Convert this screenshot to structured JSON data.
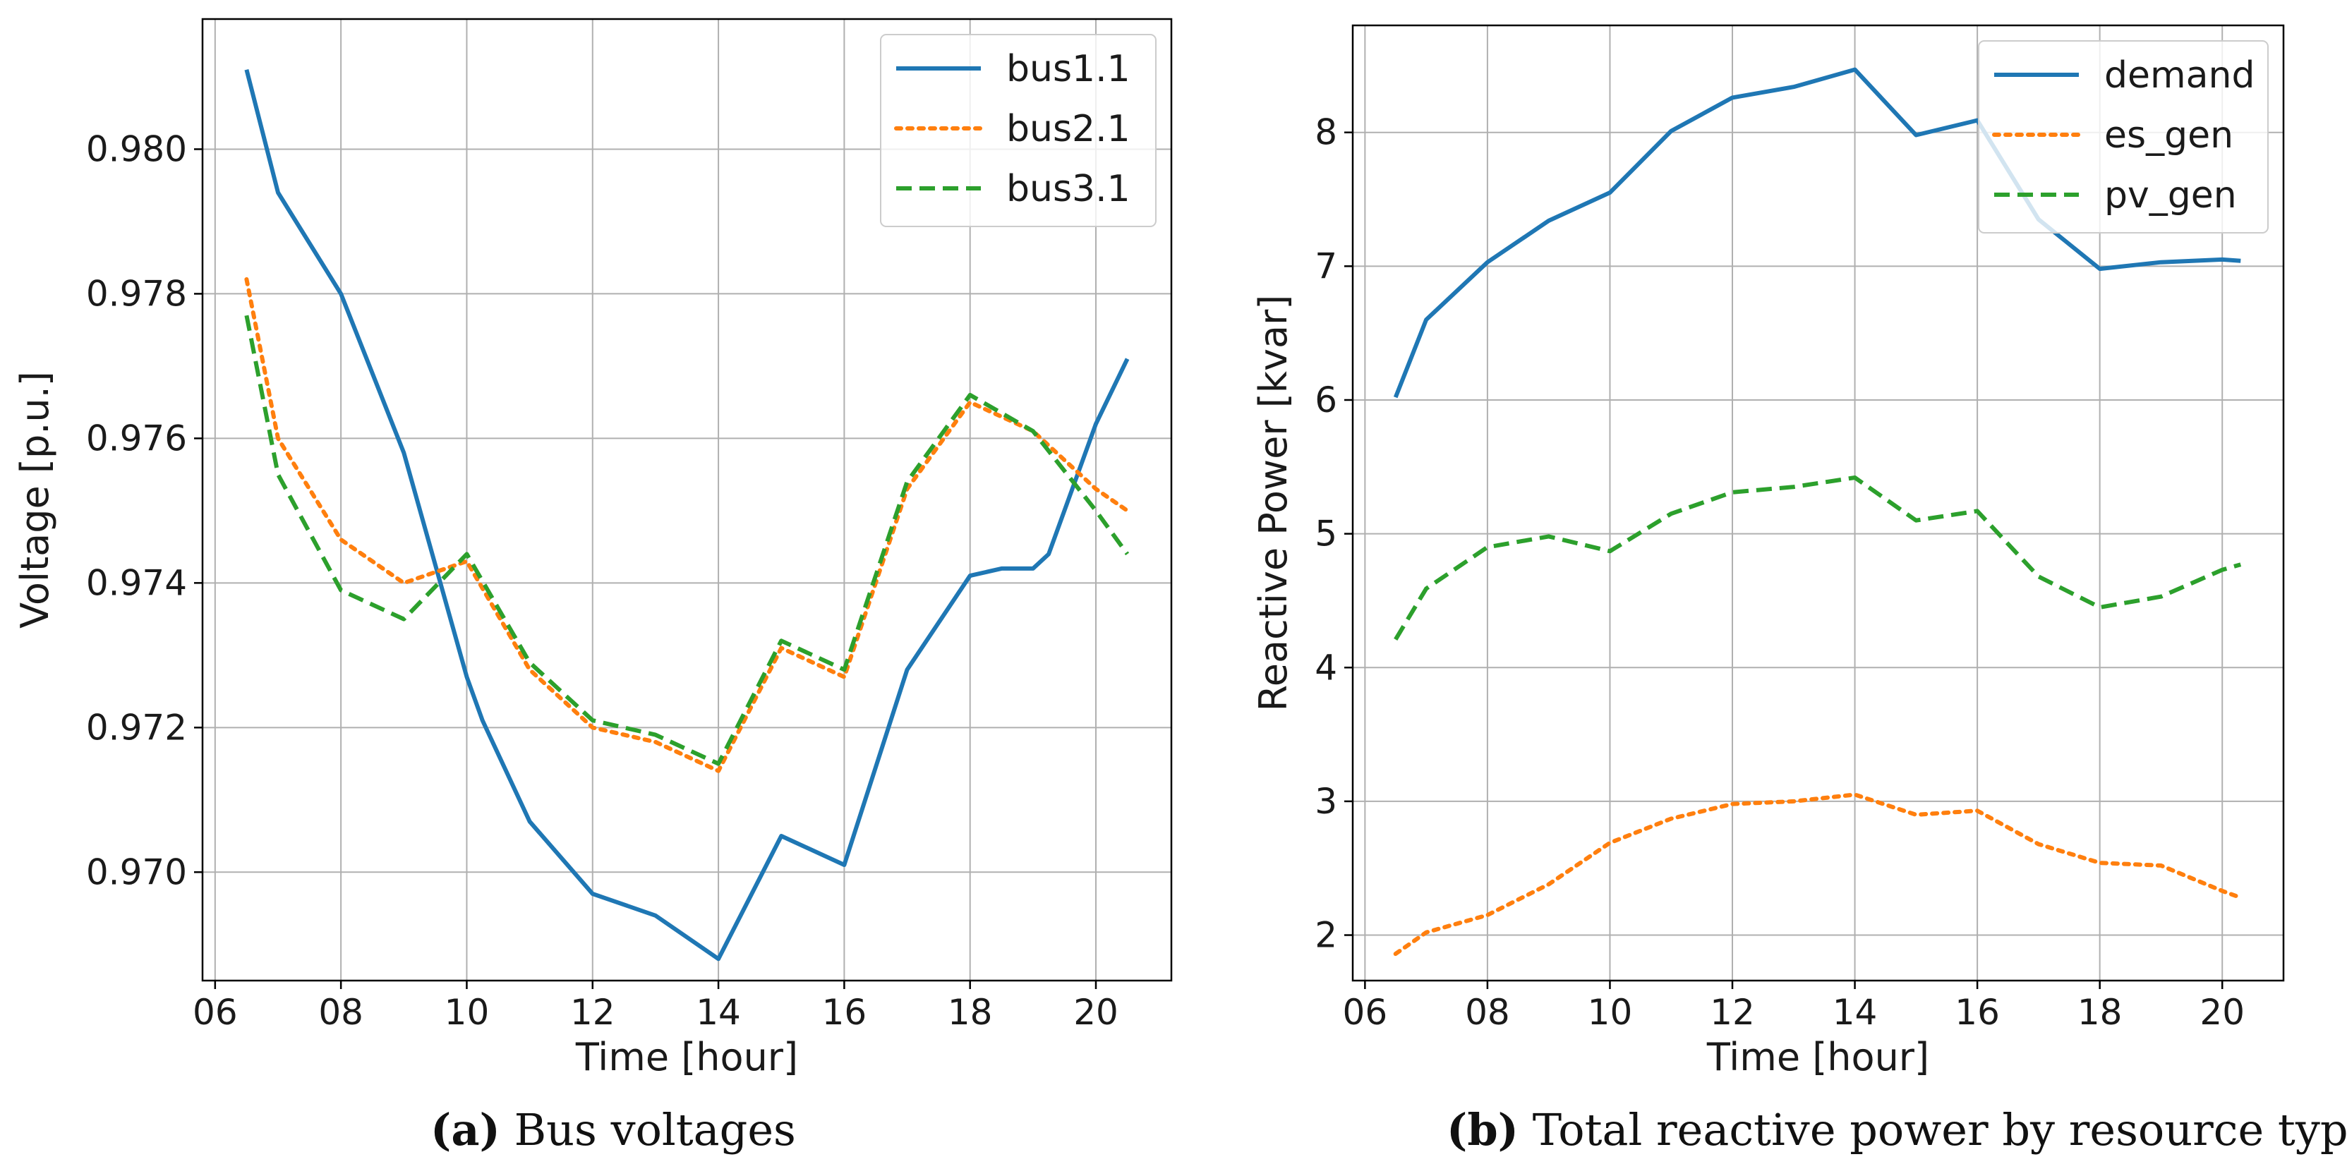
{
  "chart_data": [
    {
      "type": "line",
      "title": "",
      "xlabel": "Time [hour]",
      "ylabel": "Voltage [p.u.]",
      "xlim": [
        5.8,
        21.2
      ],
      "ylim": [
        0.9685,
        0.9818
      ],
      "xticks": [
        6,
        8,
        10,
        12,
        14,
        16,
        18,
        20
      ],
      "xtick_labels": [
        "06",
        "08",
        "10",
        "12",
        "14",
        "16",
        "18",
        "20"
      ],
      "yticks": [
        0.97,
        0.972,
        0.974,
        0.976,
        0.978,
        0.98
      ],
      "ytick_labels": [
        "0.970",
        "0.972",
        "0.974",
        "0.976",
        "0.978",
        "0.980"
      ],
      "grid": true,
      "legend_position": "top-right",
      "series": [
        {
          "name": "bus1.1",
          "color": "#1f77b4",
          "style": "solid",
          "x": [
            6.5,
            7,
            8,
            9,
            10,
            10.25,
            11,
            12,
            13,
            14,
            15,
            16,
            17,
            18,
            18.5,
            19,
            19.25,
            20,
            20.5
          ],
          "y": [
            0.9811,
            0.9794,
            0.978,
            0.9758,
            0.9727,
            0.9721,
            0.9707,
            0.9697,
            0.9694,
            0.9688,
            0.9705,
            0.9701,
            0.9728,
            0.9741,
            0.9742,
            0.9742,
            0.9744,
            0.9762,
            0.9771
          ]
        },
        {
          "name": "bus2.1",
          "color": "#ff7f0e",
          "style": "dotted",
          "x": [
            6.5,
            7,
            8,
            9,
            10,
            11,
            12,
            13,
            14,
            15,
            16,
            17,
            18,
            19,
            20,
            20.5
          ],
          "y": [
            0.9782,
            0.976,
            0.9746,
            0.974,
            0.9743,
            0.9728,
            0.972,
            0.9718,
            0.9714,
            0.9731,
            0.9727,
            0.9753,
            0.9765,
            0.9761,
            0.9753,
            0.975
          ]
        },
        {
          "name": "bus3.1",
          "color": "#2ca02c",
          "style": "dashed",
          "x": [
            6.5,
            7,
            8,
            9,
            10,
            11,
            12,
            13,
            14,
            15,
            16,
            17,
            18,
            19,
            20,
            20.5
          ],
          "y": [
            0.9777,
            0.9755,
            0.9739,
            0.9735,
            0.9744,
            0.9729,
            0.9721,
            0.9719,
            0.9715,
            0.9732,
            0.9728,
            0.9754,
            0.9766,
            0.9761,
            0.975,
            0.9744
          ]
        }
      ],
      "caption_letter": "(a)",
      "caption_text": "Bus voltages"
    },
    {
      "type": "line",
      "title": "",
      "xlabel": "Time [hour]",
      "ylabel": "Reactive Power [kvar]",
      "xlim": [
        5.8,
        21.0
      ],
      "ylim": [
        1.66,
        8.8
      ],
      "xticks": [
        6,
        8,
        10,
        12,
        14,
        16,
        18,
        20
      ],
      "xtick_labels": [
        "06",
        "08",
        "10",
        "12",
        "14",
        "16",
        "18",
        "20"
      ],
      "yticks": [
        2,
        3,
        4,
        5,
        6,
        7,
        8
      ],
      "ytick_labels": [
        "2",
        "3",
        "4",
        "5",
        "6",
        "7",
        "8"
      ],
      "grid": true,
      "legend_position": "top-right",
      "series": [
        {
          "name": "demand",
          "color": "#1f77b4",
          "style": "solid",
          "x": [
            6.5,
            7,
            8,
            9,
            10,
            11,
            12,
            13,
            14,
            15,
            16,
            17,
            18,
            19,
            20,
            20.3
          ],
          "y": [
            6.02,
            6.6,
            7.03,
            7.34,
            7.55,
            8.01,
            8.26,
            8.34,
            8.47,
            7.98,
            8.09,
            7.35,
            6.98,
            7.03,
            7.05,
            7.04
          ]
        },
        {
          "name": "es_gen",
          "color": "#ff7f0e",
          "style": "dotted",
          "x": [
            6.5,
            7,
            8,
            9,
            10,
            11,
            12,
            13,
            14,
            15,
            16,
            17,
            18,
            19,
            20,
            20.3
          ],
          "y": [
            1.86,
            2.02,
            2.15,
            2.38,
            2.69,
            2.87,
            2.98,
            3.0,
            3.05,
            2.9,
            2.93,
            2.68,
            2.54,
            2.52,
            2.33,
            2.28
          ]
        },
        {
          "name": "pv_gen",
          "color": "#2ca02c",
          "style": "dashed",
          "x": [
            6.5,
            7,
            8,
            9,
            10,
            11,
            12,
            13,
            14,
            15,
            16,
            17,
            18,
            19,
            20,
            20.3
          ],
          "y": [
            4.21,
            4.59,
            4.9,
            4.98,
            4.87,
            5.15,
            5.31,
            5.35,
            5.42,
            5.1,
            5.17,
            4.68,
            4.45,
            4.53,
            4.73,
            4.77
          ]
        }
      ],
      "caption_letter": "(b)",
      "caption_text": "Total reactive power by resource type"
    }
  ]
}
